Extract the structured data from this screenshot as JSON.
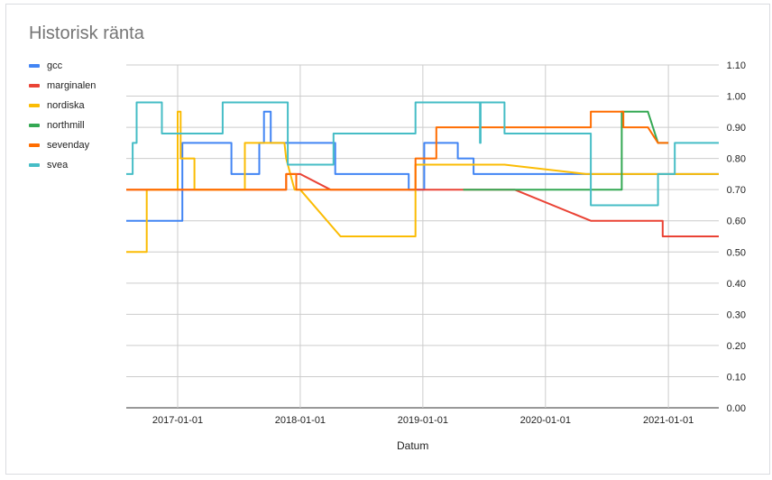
{
  "chart_data": {
    "type": "line",
    "title": "Historisk ränta",
    "xlabel": "Datum",
    "ylabel": "",
    "x_range": [
      "2016-08-01",
      "2021-05-31"
    ],
    "ylim": [
      0,
      1.1
    ],
    "yticks": [
      "0.00",
      "0.10",
      "0.20",
      "0.30",
      "0.40",
      "0.50",
      "0.60",
      "0.70",
      "0.80",
      "0.90",
      "1.00",
      "1.10"
    ],
    "xticks": [
      "2017-01-01",
      "2018-01-01",
      "2019-01-01",
      "2020-01-01",
      "2021-01-01"
    ],
    "grid": true,
    "y_axis_side": "right",
    "legend_position": "left",
    "series": [
      {
        "name": "gcc",
        "color": "#4285f4",
        "points": [
          [
            "2016-08-01",
            0.6
          ],
          [
            "2017-01-15",
            0.6
          ],
          [
            "2017-01-15",
            0.85
          ],
          [
            "2017-06-10",
            0.85
          ],
          [
            "2017-06-10",
            0.75
          ],
          [
            "2017-09-01",
            0.75
          ],
          [
            "2017-09-01",
            0.85
          ],
          [
            "2017-09-15",
            0.85
          ],
          [
            "2017-09-15",
            0.95
          ],
          [
            "2017-10-05",
            0.95
          ],
          [
            "2017-10-05",
            0.85
          ],
          [
            "2018-04-15",
            0.85
          ],
          [
            "2018-04-15",
            0.75
          ],
          [
            "2018-11-20",
            0.75
          ],
          [
            "2018-11-20",
            0.7
          ],
          [
            "2019-01-05",
            0.7
          ],
          [
            "2019-01-05",
            0.85
          ],
          [
            "2019-04-15",
            0.85
          ],
          [
            "2019-04-15",
            0.8
          ],
          [
            "2019-06-01",
            0.8
          ],
          [
            "2019-06-01",
            0.75
          ],
          [
            "2021-05-31",
            0.75
          ]
        ]
      },
      {
        "name": "marginalen",
        "color": "#ea4335",
        "points": [
          [
            "2016-08-01",
            0.7
          ],
          [
            "2017-11-20",
            0.7
          ],
          [
            "2017-11-20",
            0.75
          ],
          [
            "2018-01-01",
            0.75
          ],
          [
            "2018-04-01",
            0.7
          ],
          [
            "2019-10-01",
            0.7
          ],
          [
            "2020-05-15",
            0.6
          ],
          [
            "2020-12-15",
            0.6
          ],
          [
            "2020-12-15",
            0.55
          ],
          [
            "2021-05-31",
            0.55
          ]
        ]
      },
      {
        "name": "nordiska",
        "color": "#fbbc04",
        "points": [
          [
            "2016-08-01",
            0.5
          ],
          [
            "2016-10-01",
            0.5
          ],
          [
            "2016-10-01",
            0.7
          ],
          [
            "2017-01-01",
            0.7
          ],
          [
            "2017-01-01",
            0.95
          ],
          [
            "2017-01-10",
            0.95
          ],
          [
            "2017-01-10",
            0.8
          ],
          [
            "2017-02-20",
            0.8
          ],
          [
            "2017-02-20",
            0.7
          ],
          [
            "2017-07-20",
            0.7
          ],
          [
            "2017-07-20",
            0.85
          ],
          [
            "2017-11-15",
            0.85
          ],
          [
            "2017-11-20",
            0.8
          ],
          [
            "2017-12-15",
            0.7
          ],
          [
            "2018-01-01",
            0.7
          ],
          [
            "2018-05-01",
            0.55
          ],
          [
            "2018-12-10",
            0.55
          ],
          [
            "2018-12-10",
            0.78
          ],
          [
            "2019-09-01",
            0.78
          ],
          [
            "2020-05-01",
            0.75
          ],
          [
            "2021-05-31",
            0.75
          ]
        ]
      },
      {
        "name": "northmill",
        "color": "#34a853",
        "points": [
          [
            "2019-05-01",
            0.7
          ],
          [
            "2020-08-15",
            0.7
          ],
          [
            "2020-08-15",
            0.95
          ],
          [
            "2020-11-01",
            0.95
          ],
          [
            "2020-12-01",
            0.85
          ],
          [
            "2021-01-01",
            0.85
          ]
        ]
      },
      {
        "name": "sevenday",
        "color": "#ff6d01",
        "points": [
          [
            "2016-08-01",
            0.7
          ],
          [
            "2017-11-20",
            0.7
          ],
          [
            "2017-11-20",
            0.75
          ],
          [
            "2017-12-20",
            0.75
          ],
          [
            "2017-12-20",
            0.7
          ],
          [
            "2018-12-10",
            0.7
          ],
          [
            "2018-12-10",
            0.8
          ],
          [
            "2019-02-10",
            0.8
          ],
          [
            "2019-02-10",
            0.9
          ],
          [
            "2020-05-15",
            0.9
          ],
          [
            "2020-05-15",
            0.95
          ],
          [
            "2020-08-20",
            0.95
          ],
          [
            "2020-08-20",
            0.9
          ],
          [
            "2020-11-01",
            0.9
          ],
          [
            "2020-12-01",
            0.85
          ],
          [
            "2021-01-01",
            0.85
          ]
        ]
      },
      {
        "name": "svea",
        "color": "#46bdc6",
        "points": [
          [
            "2016-08-01",
            0.75
          ],
          [
            "2016-08-20",
            0.75
          ],
          [
            "2016-08-20",
            0.85
          ],
          [
            "2016-09-01",
            0.85
          ],
          [
            "2016-09-01",
            0.98
          ],
          [
            "2016-11-15",
            0.98
          ],
          [
            "2016-11-15",
            0.88
          ],
          [
            "2017-05-15",
            0.88
          ],
          [
            "2017-05-15",
            0.98
          ],
          [
            "2017-11-25",
            0.98
          ],
          [
            "2017-11-25",
            0.78
          ],
          [
            "2018-04-10",
            0.78
          ],
          [
            "2018-04-10",
            0.88
          ],
          [
            "2018-12-10",
            0.88
          ],
          [
            "2018-12-10",
            0.98
          ],
          [
            "2019-06-20",
            0.98
          ],
          [
            "2019-06-20",
            0.85
          ],
          [
            "2019-06-22",
            0.85
          ],
          [
            "2019-06-22",
            0.98
          ],
          [
            "2019-09-01",
            0.98
          ],
          [
            "2019-09-01",
            0.88
          ],
          [
            "2020-05-15",
            0.88
          ],
          [
            "2020-05-15",
            0.65
          ],
          [
            "2020-12-01",
            0.65
          ],
          [
            "2020-12-01",
            0.75
          ],
          [
            "2021-01-20",
            0.75
          ],
          [
            "2021-01-20",
            0.85
          ],
          [
            "2021-05-31",
            0.85
          ]
        ]
      }
    ]
  }
}
